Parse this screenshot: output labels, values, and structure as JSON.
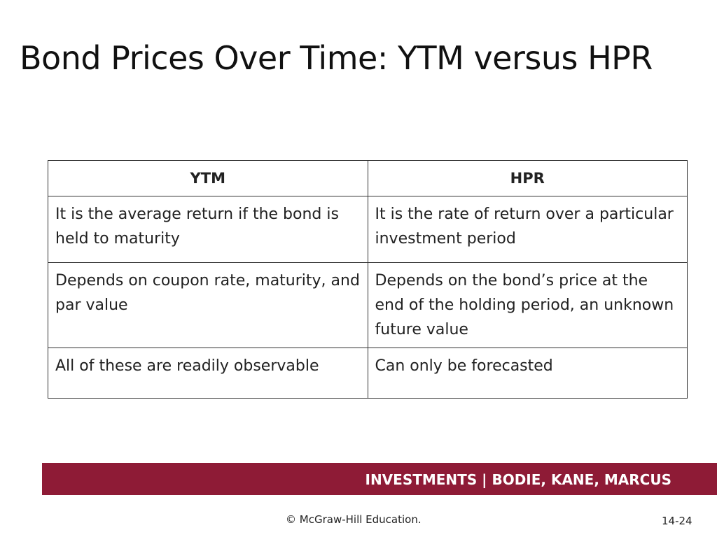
{
  "title": "Bond Prices Over Time: YTM versus HPR",
  "table": {
    "header": [
      "YTM",
      "HPR"
    ],
    "rows": [
      [
        "It is the average return if the bond is held to maturity",
        "It is the rate of return over a particular investment period"
      ],
      [
        "Depends on coupon rate, maturity, and par value",
        "Depends on the bond’s price at the end of the holding period, an unknown future value"
      ],
      [
        "All of these are readily observable",
        "Can only be forecasted"
      ]
    ]
  },
  "footer": {
    "banner": "INVESTMENTS | BODIE, KANE, MARCUS",
    "copyright": "© McGraw-Hill Education.",
    "page": "14-24"
  }
}
